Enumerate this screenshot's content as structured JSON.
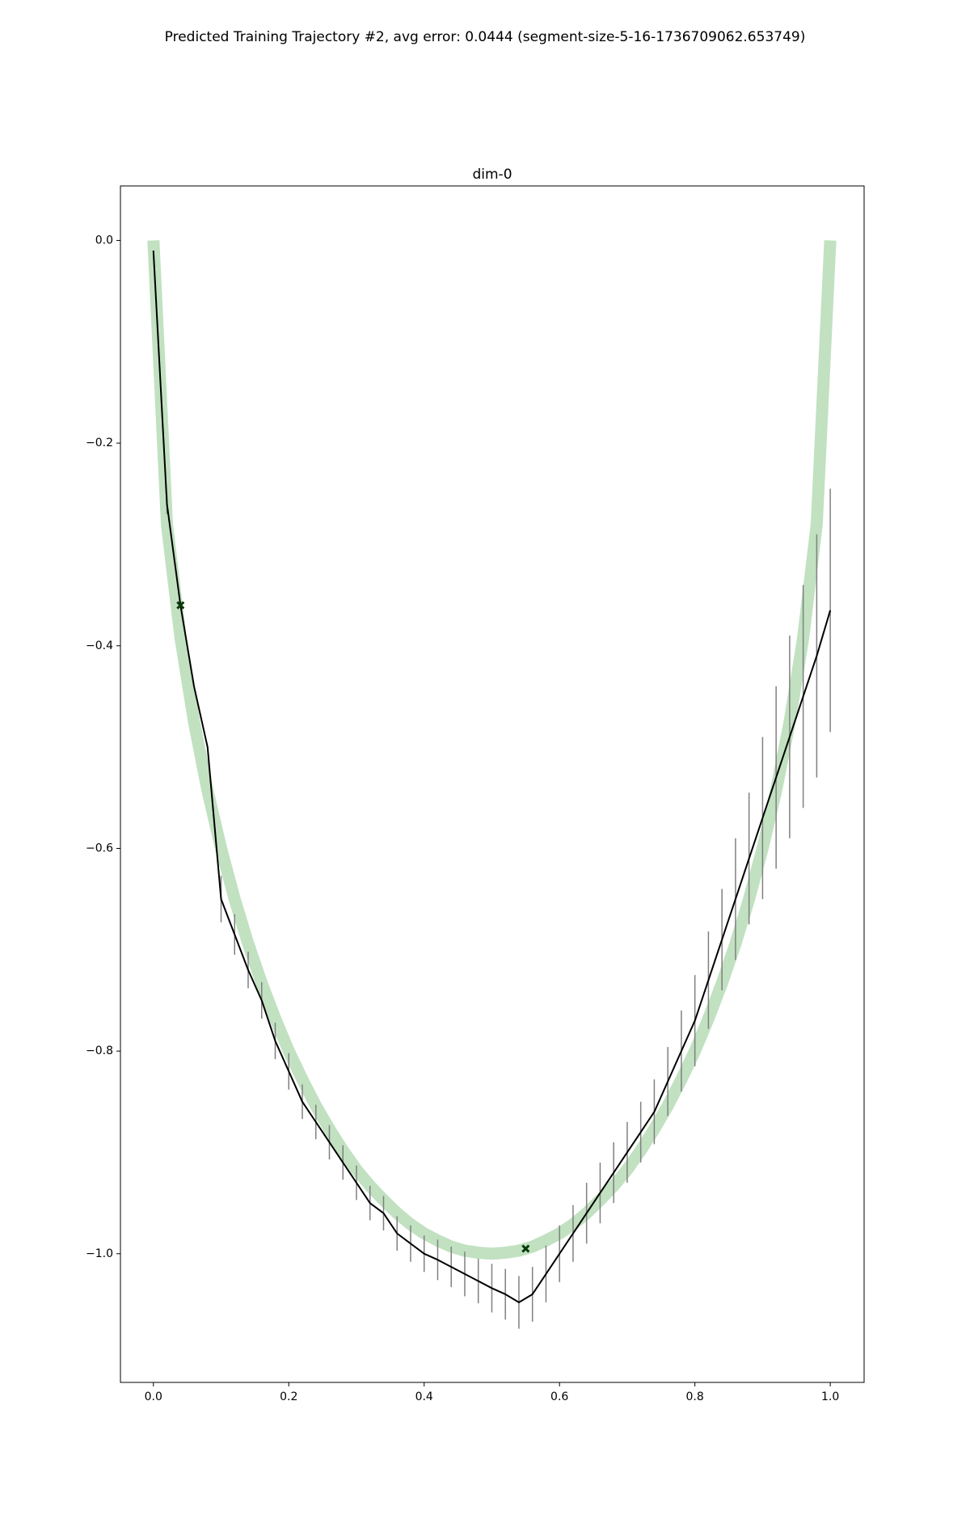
{
  "chart_data": {
    "type": "line",
    "suptitle": "Predicted Training Trajectory #2, avg error: 0.0444 (segment-size-5-16-1736709062.653749)",
    "title": "dim-0",
    "xlim": [
      -0.0487,
      1.05
    ],
    "ylim": [
      -1.127,
      0.0538
    ],
    "xticks": [
      {
        "value": 0,
        "label": "0.0"
      },
      {
        "value": 0.2,
        "label": "0.2"
      },
      {
        "value": 0.4,
        "label": "0.4"
      },
      {
        "value": 0.6,
        "label": "0.6"
      },
      {
        "value": 0.8,
        "label": "0.8"
      },
      {
        "value": 1,
        "label": "1.0"
      }
    ],
    "yticks": [
      {
        "value": 0,
        "label": "0.0"
      },
      {
        "value": -0.2,
        "label": "−0.2"
      },
      {
        "value": -0.4,
        "label": "−0.4"
      },
      {
        "value": -0.6,
        "label": "−0.6"
      },
      {
        "value": -0.8,
        "label": "−0.8"
      },
      {
        "value": -1,
        "label": "−1.0"
      }
    ],
    "series": [
      {
        "type": "line",
        "color": "#c1e1c1",
        "x": [
          0,
          0.02,
          0.04,
          0.06,
          0.08,
          0.1,
          0.12,
          0.14,
          0.16,
          0.18,
          0.2,
          0.22,
          0.24,
          0.26,
          0.28,
          0.3,
          0.32,
          0.34,
          0.36,
          0.38,
          0.4,
          0.42,
          0.44,
          0.46,
          0.48,
          0.5,
          0.52,
          0.54,
          0.56,
          0.58,
          0.6,
          0.62,
          0.64,
          0.66,
          0.68,
          0.7,
          0.72,
          0.74,
          0.76,
          0.78,
          0.8,
          0.82,
          0.84,
          0.86,
          0.88,
          0.9,
          0.92,
          0.94,
          0.96,
          0.98,
          1
        ],
        "values": [
          0,
          -0.28,
          -0.392,
          -0.475,
          -0.543,
          -0.6,
          -0.65,
          -0.694,
          -0.733,
          -0.768,
          -0.8,
          -0.828,
          -0.854,
          -0.877,
          -0.898,
          -0.917,
          -0.933,
          -0.947,
          -0.96,
          -0.971,
          -0.98,
          -0.987,
          -0.993,
          -0.997,
          -0.999,
          -1,
          -0.999,
          -0.997,
          -0.993,
          -0.987,
          -0.98,
          -0.971,
          -0.96,
          -0.947,
          -0.933,
          -0.917,
          -0.898,
          -0.877,
          -0.854,
          -0.828,
          -0.8,
          -0.768,
          -0.733,
          -0.694,
          -0.65,
          -0.6,
          -0.543,
          -0.475,
          -0.392,
          -0.28,
          0
        ]
      },
      {
        "type": "line",
        "color": "#000000",
        "error_color": "#808080",
        "x": [
          0,
          0.02,
          0.04,
          0.06,
          0.08,
          0.1,
          0.12,
          0.14,
          0.16,
          0.18,
          0.2,
          0.22,
          0.24,
          0.26,
          0.28,
          0.3,
          0.32,
          0.34,
          0.36,
          0.38,
          0.4,
          0.42,
          0.44,
          0.46,
          0.48,
          0.5,
          0.52,
          0.54,
          0.56,
          0.58,
          0.6,
          0.62,
          0.64,
          0.66,
          0.68,
          0.7,
          0.72,
          0.74,
          0.76,
          0.78,
          0.8,
          0.82,
          0.84,
          0.86,
          0.88,
          0.9,
          0.92,
          0.94,
          0.96,
          0.98,
          1
        ],
        "values": [
          -0.01,
          -0.26,
          -0.36,
          -0.44,
          -0.5,
          -0.65,
          -0.685,
          -0.72,
          -0.75,
          -0.79,
          -0.82,
          -0.85,
          -0.87,
          -0.89,
          -0.91,
          -0.93,
          -0.95,
          -0.96,
          -0.98,
          -0.99,
          -1,
          -1.006,
          -1.013,
          -1.02,
          -1.027,
          -1.034,
          -1.04,
          -1.048,
          -1.04,
          -1.02,
          -1,
          -0.98,
          -0.96,
          -0.94,
          -0.92,
          -0.9,
          -0.88,
          -0.86,
          -0.83,
          -0.8,
          -0.77,
          -0.73,
          -0.69,
          -0.65,
          -0.61,
          -0.57,
          -0.53,
          -0.49,
          -0.45,
          -0.41,
          -0.365
        ],
        "errors": [
          0,
          0.01,
          0,
          0,
          0,
          0.023,
          0.02,
          0.018,
          0.018,
          0.018,
          0.018,
          0.017,
          0.017,
          0.017,
          0.017,
          0.017,
          0.017,
          0.017,
          0.017,
          0.018,
          0.018,
          0.02,
          0.02,
          0.022,
          0.022,
          0.024,
          0.025,
          0.026,
          0.027,
          0.028,
          0.028,
          0.028,
          0.03,
          0.03,
          0.03,
          0.03,
          0.03,
          0.032,
          0.034,
          0.04,
          0.045,
          0.048,
          0.05,
          0.06,
          0.065,
          0.08,
          0.09,
          0.1,
          0.11,
          0.12,
          0.12
        ]
      },
      {
        "type": "scatter",
        "color": "#0a3a0a",
        "x": [
          0.04,
          0.55
        ],
        "values": [
          -0.36,
          -0.995
        ]
      }
    ]
  }
}
